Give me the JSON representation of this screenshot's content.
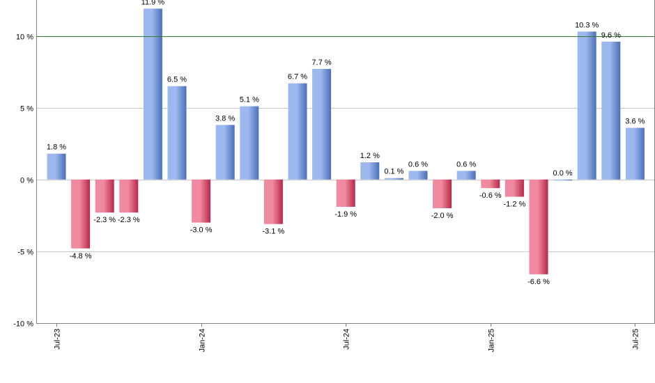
{
  "chart_data": {
    "type": "bar",
    "title": "",
    "xlabel": "",
    "ylabel": "",
    "ylim": [
      -10,
      12.5
    ],
    "y_ticks": [
      {
        "value": 10,
        "label": "10 %"
      },
      {
        "value": 5,
        "label": "5 %"
      },
      {
        "value": 0,
        "label": "0 %"
      },
      {
        "value": -5,
        "label": "-5 %"
      },
      {
        "value": -10,
        "label": "-10 %"
      }
    ],
    "x_ticks": [
      {
        "index": 0,
        "label": "Jul-23"
      },
      {
        "index": 6,
        "label": "Jan-24"
      },
      {
        "index": 12,
        "label": "Jul-24"
      },
      {
        "index": 18,
        "label": "Jan-25"
      },
      {
        "index": 24,
        "label": "Jul-25"
      }
    ],
    "categories": [
      "2023-07",
      "2023-08",
      "2023-09",
      "2023-10",
      "2023-11",
      "2023-12",
      "2024-01",
      "2024-02",
      "2024-03",
      "2024-04",
      "2024-05",
      "2024-06",
      "2024-07",
      "2024-08",
      "2024-09",
      "2024-10",
      "2024-11",
      "2024-12",
      "2025-01",
      "2025-02",
      "2025-03",
      "2025-04",
      "2025-05",
      "2025-06",
      "2025-07"
    ],
    "values": [
      1.8,
      -4.8,
      -2.3,
      -2.3,
      11.9,
      6.5,
      -3.0,
      3.8,
      5.1,
      -3.1,
      6.7,
      7.7,
      -1.9,
      1.2,
      0.1,
      0.6,
      -2.0,
      0.6,
      -0.6,
      -1.2,
      -6.6,
      0.0,
      10.3,
      9.6,
      3.6
    ],
    "labels": [
      "1.8 %",
      "-4.8 %",
      "-2.3 %",
      "-2.3 %",
      "11.9 %",
      "6.5 %",
      "-3.0 %",
      "3.8 %",
      "5.1 %",
      "-3.1 %",
      "6.7 %",
      "7.7 %",
      "-1.9 %",
      "1.2 %",
      "0.1 %",
      "0.6 %",
      "-2.0 %",
      "0.6 %",
      "-0.6 %",
      "-1.2 %",
      "-6.6 %",
      "0.0 %",
      "10.3 %",
      "9.6 %",
      "3.6 %"
    ],
    "reference_line": {
      "value": 10,
      "color": "#2e7d32"
    },
    "grid": true,
    "colors": {
      "positive_light": "#9db8ee",
      "positive_dark": "#4a6fb8",
      "negative_light": "#f08aa0",
      "negative_dark": "#b82848",
      "grid": "#c8c8c8",
      "axis": "#808080"
    }
  }
}
